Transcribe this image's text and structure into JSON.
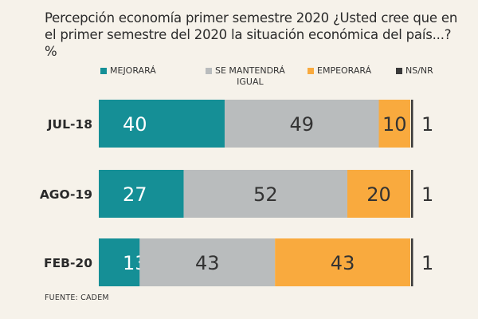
{
  "title": "Percepción economía primer semestre 2020 ¿Usted cree que en el primer semestre del 2020 la situación económica del país...? %",
  "source": "FUENTE: CADEM",
  "colors": {
    "mejorara": "#158f96",
    "mantendra": "#b9bcbd",
    "empeorara": "#f9aa3e",
    "nsnr": "#3a3a3a"
  },
  "chart_data": {
    "type": "bar",
    "orientation": "horizontal",
    "stacked": true,
    "title": "Percepción economía primer semestre 2020 ¿Usted cree que en el primer semestre del 2020 la situación económica del país...? %",
    "categories": [
      "JUL-18",
      "AGO-19",
      "FEB-20"
    ],
    "series": [
      {
        "name": "MEJORARÁ",
        "values": [
          40,
          27,
          13
        ]
      },
      {
        "name": "SE MANTENDRÁ\nIGUAL",
        "values": [
          49,
          52,
          43
        ]
      },
      {
        "name": "EMPEORARÁ",
        "values": [
          10,
          20,
          43
        ]
      },
      {
        "name": "NS/NR",
        "values": [
          1,
          1,
          1
        ]
      }
    ],
    "xlim": [
      0,
      100
    ],
    "legend": "top",
    "grid": false
  }
}
